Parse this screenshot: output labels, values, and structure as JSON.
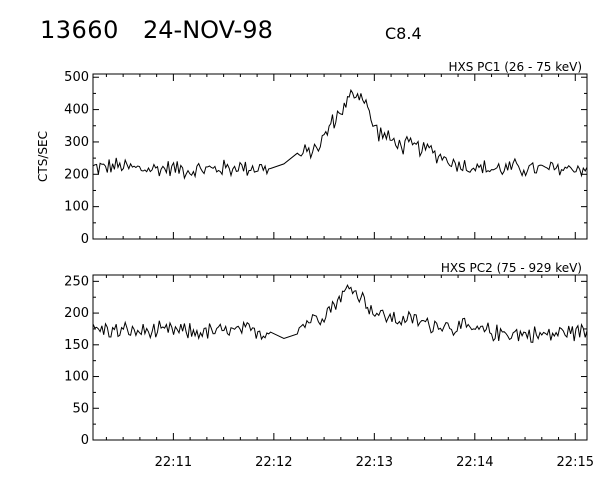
{
  "header": {
    "event_id": "13660",
    "date": "24-NOV-98",
    "flare_class": "C8.4"
  },
  "chart_data": [
    {
      "type": "line",
      "title": "HXS PC1 (26 - 75 keV)",
      "ylabel": "CTS/SEC",
      "xlabel": "",
      "x_range": [
        "22:10:12",
        "22:15:07"
      ],
      "ylim": [
        0,
        510
      ],
      "y_ticks": [
        0,
        100,
        200,
        300,
        400,
        500
      ],
      "x_tick_labels": [],
      "series": [
        {
          "x": [
            "22:10:12",
            "22:10:28",
            "22:10:43",
            "22:10:58",
            "22:11:13",
            "22:11:28",
            "22:11:43",
            "22:11:58",
            "22:12:06",
            "22:12:14",
            "22:12:22",
            "22:12:30",
            "22:12:34",
            "22:12:38",
            "22:12:42",
            "22:12:46",
            "22:12:50",
            "22:12:55",
            "22:12:58",
            "22:13:05",
            "22:13:15",
            "22:13:25",
            "22:13:35",
            "22:13:45",
            "22:13:55",
            "22:14:10",
            "22:14:25",
            "22:14:40",
            "22:14:55",
            "22:15:07"
          ],
          "values": [
            220,
            225,
            215,
            220,
            212,
            218,
            222,
            218,
            232,
            255,
            270,
            310,
            355,
            380,
            410,
            440,
            450,
            430,
            360,
            320,
            290,
            285,
            270,
            240,
            225,
            215,
            220,
            215,
            218,
            222
          ]
        }
      ]
    },
    {
      "type": "line",
      "title": "HXS PC2 (75 - 929 keV)",
      "ylabel": "",
      "xlabel": "",
      "x_range": [
        "22:10:12",
        "22:15:07"
      ],
      "ylim": [
        0,
        260
      ],
      "y_ticks": [
        0,
        50,
        100,
        150,
        200,
        250
      ],
      "x_tick_labels": [
        "22:11",
        "22:12",
        "22:13",
        "22:14",
        "22:15"
      ],
      "series": [
        {
          "x": [
            "22:10:12",
            "22:10:28",
            "22:10:43",
            "22:10:58",
            "22:11:13",
            "22:11:28",
            "22:11:43",
            "22:11:58",
            "22:12:06",
            "22:12:14",
            "22:12:22",
            "22:12:30",
            "22:12:34",
            "22:12:38",
            "22:12:42",
            "22:12:46",
            "22:12:50",
            "22:12:55",
            "22:12:58",
            "22:13:05",
            "22:13:15",
            "22:13:25",
            "22:13:35",
            "22:13:45",
            "22:13:55",
            "22:14:10",
            "22:14:25",
            "22:14:40",
            "22:14:55",
            "22:15:07"
          ],
          "values": [
            175,
            172,
            170,
            172,
            170,
            171,
            172,
            170,
            160,
            175,
            190,
            200,
            210,
            220,
            232,
            240,
            230,
            220,
            205,
            195,
            190,
            188,
            182,
            180,
            175,
            170,
            168,
            165,
            170,
            172
          ]
        }
      ]
    }
  ]
}
